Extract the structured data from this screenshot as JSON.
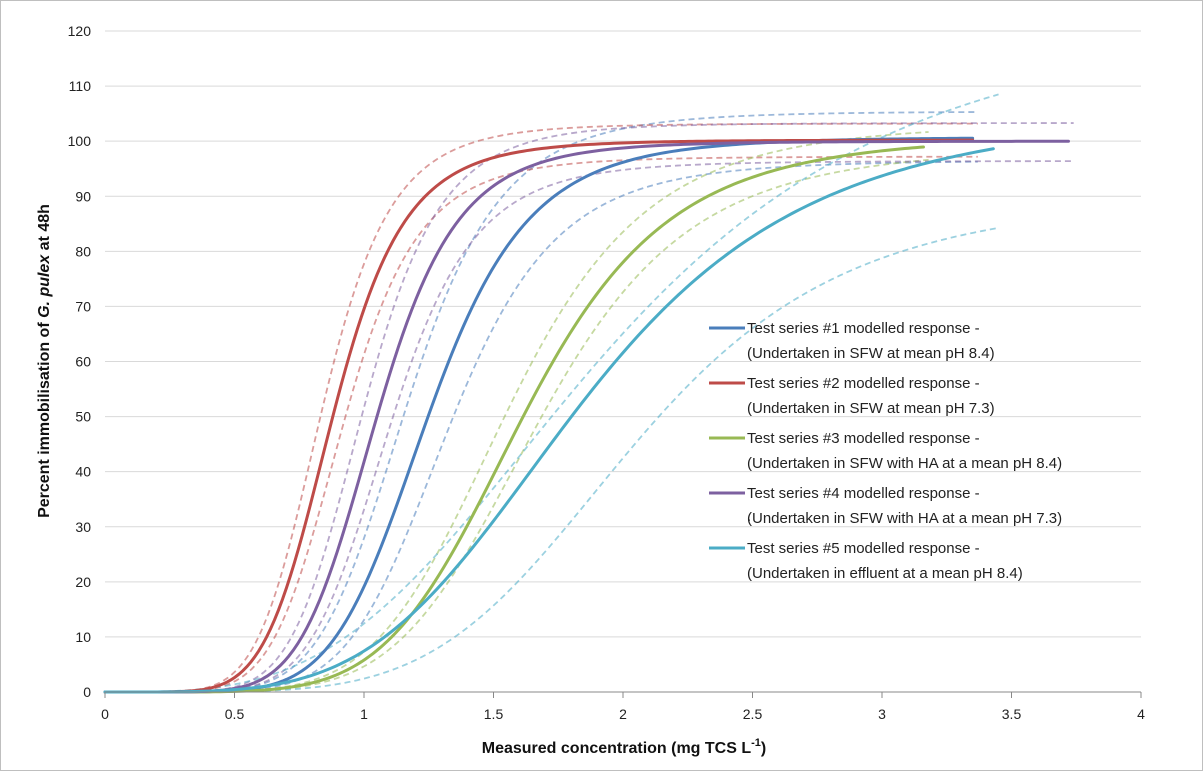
{
  "chart_data": {
    "type": "line",
    "xlabel": {
      "main": "Measured concentration",
      "unit_open": "(mg TCS L",
      "unit_sup": "-1",
      "unit_close": ")"
    },
    "ylabel": {
      "pre": "Percent immobilisation of ",
      "italic": "G. pulex",
      "post": " at 48h"
    },
    "xlim": [
      0,
      4
    ],
    "ylim": [
      0,
      120
    ],
    "x_ticks": [
      "0",
      "0.5",
      "1",
      "1.5",
      "2",
      "2.5",
      "3",
      "3.5",
      "4"
    ],
    "y_ticks": [
      "0",
      "10",
      "20",
      "30",
      "40",
      "50",
      "60",
      "70",
      "80",
      "90",
      "100",
      "110",
      "120"
    ],
    "grid": "horizontal",
    "legend_position": "right",
    "series": [
      {
        "name": "Test series #1 modelled response  -",
        "subtitle": "(Undertaken in SFW at mean pH 8.4)",
        "color": "#4a7ebb",
        "x_max": 3.35,
        "model": {
          "top": 100.7,
          "ec50": 1.25,
          "slope": 6.5
        },
        "lower": {
          "top": 96.5,
          "ec50": 1.33,
          "slope": 6.5
        },
        "upper": {
          "top": 105.4,
          "ec50": 1.17,
          "slope": 6.5
        }
      },
      {
        "name": "Test series #2  modelled response -",
        "subtitle": "(Undertaken in SFW at mean pH 7.3)",
        "color": "#be4b48",
        "x_max": 3.35,
        "model": {
          "top": 100.2,
          "ec50": 0.88,
          "slope": 6.4
        },
        "lower": {
          "top": 97.2,
          "ec50": 0.92,
          "slope": 6.4
        },
        "upper": {
          "top": 103.2,
          "ec50": 0.84,
          "slope": 6.4
        }
      },
      {
        "name": "Test series #3  modelled response -",
        "subtitle": "(Undertaken in SFW with HA at a mean pH 8.4)",
        "color": "#98b954",
        "x_max": 3.16,
        "model": {
          "top": 101.0,
          "ec50": 1.62,
          "slope": 5.8
        },
        "lower": {
          "top": 99.0,
          "ec50": 1.68,
          "slope": 5.8
        },
        "upper": {
          "top": 103.3,
          "ec50": 1.56,
          "slope": 5.8
        }
      },
      {
        "name": "Test series #4  modelled response -",
        "subtitle": "(Undertaken in SFW with HA at a mean pH 7.3)",
        "color": "#7d60a0",
        "x_max": 3.72,
        "model": {
          "top": 100.0,
          "ec50": 1.05,
          "slope": 6.8
        },
        "lower": {
          "top": 96.4,
          "ec50": 1.1,
          "slope": 6.8
        },
        "upper": {
          "top": 103.3,
          "ec50": 1.0,
          "slope": 6.8
        }
      },
      {
        "name": "Test series #5  modelled response -",
        "subtitle": "(Undertaken in effluent at a mean pH 8.4)",
        "color": "#4bacc6",
        "x_max": 3.43,
        "model": {
          "top": 106.0,
          "ec50": 1.85,
          "slope": 4.2
        },
        "lower": {
          "top": 90.5,
          "ec50": 2.05,
          "slope": 5.0
        },
        "upper": {
          "top": 125.0,
          "ec50": 1.95,
          "slope": 3.3
        }
      }
    ],
    "legend_stray_mark": "."
  }
}
